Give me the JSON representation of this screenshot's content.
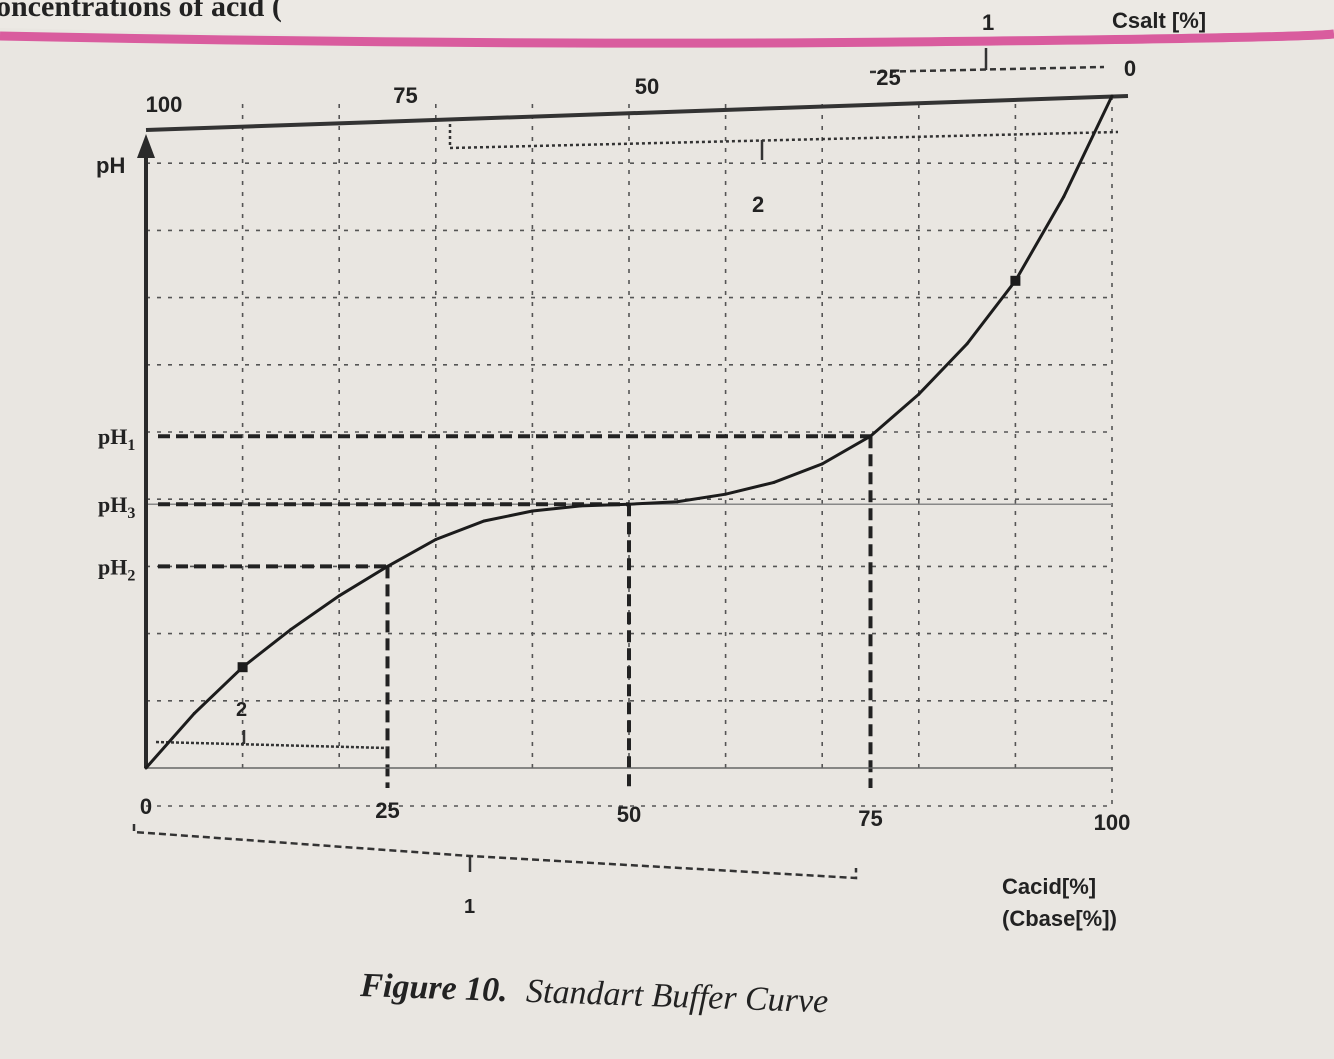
{
  "page": {
    "header_fragment": "oncentrations of acid (",
    "figure_number": "Figure 10.",
    "figure_title": "Standart Buffer Curve",
    "accent_color": "#d95c9e"
  },
  "chart_data": {
    "type": "line",
    "title": "Standart Buffer Curve",
    "ylabel": "pH",
    "xlabel_line1": "Cacid[%]",
    "xlabel_line2": "(Cbase[%])",
    "top_axis_label": "Csalt [%]",
    "x_ticks": [
      "0",
      "25",
      "50",
      "75",
      "100"
    ],
    "top_ticks": [
      "100",
      "75",
      "50",
      "25",
      "0"
    ],
    "y_ticks": [
      "pH1",
      "pH3",
      "pH2"
    ],
    "y_tick_parts": [
      {
        "base": "pH",
        "sub": "1"
      },
      {
        "base": "pH",
        "sub": "3"
      },
      {
        "base": "pH",
        "sub": "2"
      }
    ],
    "xlim": [
      0,
      100
    ],
    "grid": true,
    "series": [
      {
        "x": [
          0,
          5,
          10,
          15,
          20,
          25,
          30,
          35,
          40,
          45,
          50,
          55,
          60,
          65,
          70,
          75,
          80,
          85,
          90,
          95,
          100
        ],
        "y": [
          1.0,
          1.65,
          2.2,
          2.65,
          3.05,
          3.4,
          3.72,
          3.94,
          4.06,
          4.12,
          4.14,
          4.17,
          4.26,
          4.4,
          4.62,
          4.95,
          5.45,
          6.05,
          6.8,
          7.8,
          9.0
        ]
      }
    ],
    "markers": [
      {
        "x": 10,
        "y": 2.2
      },
      {
        "x": 90,
        "y": 6.8
      }
    ],
    "reference_points": [
      {
        "label": "pH1",
        "x": 75,
        "y": 4.95
      },
      {
        "label": "pH3",
        "x": 50,
        "y": 4.14
      },
      {
        "label": "pH2",
        "x": 25,
        "y": 3.4
      }
    ],
    "annotations": {
      "bracket_bottom_label": "1",
      "bracket_top_label": "2",
      "inner_bottom_label": "2",
      "top_corner_label": "1"
    }
  }
}
